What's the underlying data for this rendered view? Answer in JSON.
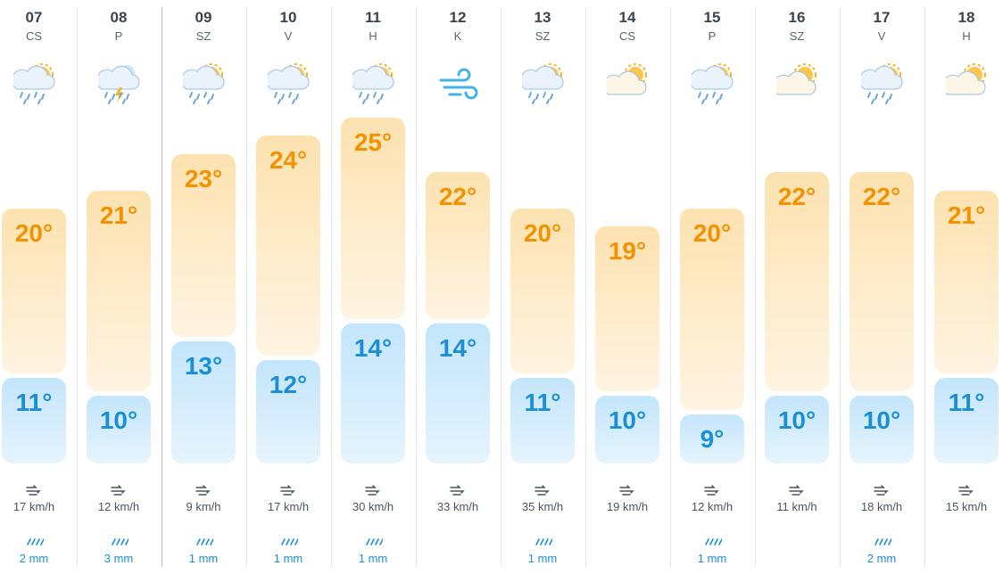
{
  "days": [
    {
      "date": "07",
      "weekday": "CS",
      "high": "20°",
      "low": "11°",
      "wind": "17 km/h",
      "rain": "2 mm"
    },
    {
      "date": "08",
      "weekday": "P",
      "high": "21°",
      "low": "10°",
      "wind": "12 km/h",
      "rain": "3 mm"
    },
    {
      "date": "09",
      "weekday": "SZ",
      "high": "23°",
      "low": "13°",
      "wind": "9 km/h",
      "rain": "1 mm"
    },
    {
      "date": "10",
      "weekday": "V",
      "high": "24°",
      "low": "12°",
      "wind": "17 km/h",
      "rain": "1 mm"
    },
    {
      "date": "11",
      "weekday": "H",
      "high": "25°",
      "low": "14°",
      "wind": "30 km/h",
      "rain": "1 mm"
    },
    {
      "date": "12",
      "weekday": "K",
      "high": "22°",
      "low": "14°",
      "wind": "33 km/h"
    },
    {
      "date": "13",
      "weekday": "SZ",
      "high": "20°",
      "low": "11°",
      "wind": "35 km/h",
      "rain": "1 mm"
    },
    {
      "date": "14",
      "weekday": "CS",
      "high": "19°",
      "low": "10°",
      "wind": "19 km/h"
    },
    {
      "date": "15",
      "weekday": "P",
      "high": "20°",
      "low": "9°",
      "wind": "12 km/h",
      "rain": "1 mm"
    },
    {
      "date": "16",
      "weekday": "SZ",
      "high": "22°",
      "low": "10°",
      "wind": "11 km/h"
    },
    {
      "date": "17",
      "weekday": "V",
      "high": "22°",
      "low": "10°",
      "wind": "18 km/h",
      "rain": "2 mm"
    },
    {
      "date": "18",
      "weekday": "H",
      "high": "21°",
      "low": "11°",
      "wind": "15 km/h"
    }
  ]
}
